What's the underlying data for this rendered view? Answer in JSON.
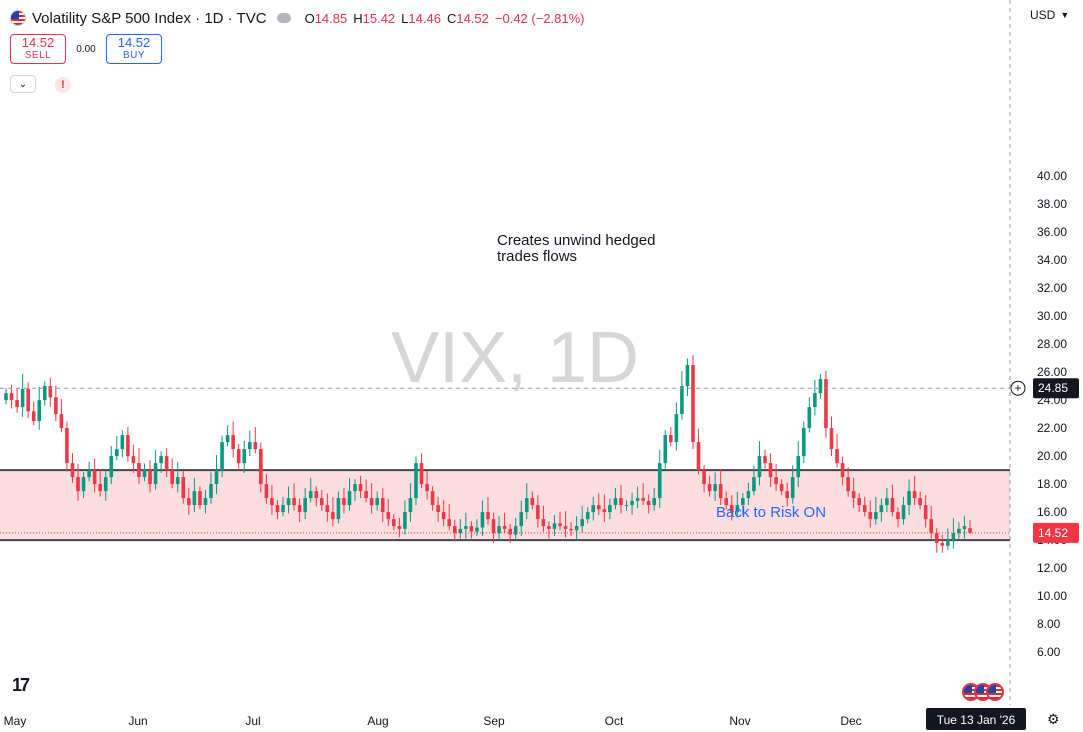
{
  "header": {
    "symbol_title": "Volatility S&P 500 Index · 1D · TVC",
    "ohlc": [
      {
        "k": "O",
        "v": "14.85"
      },
      {
        "k": "H",
        "v": "15.42"
      },
      {
        "k": "L",
        "v": "14.46"
      },
      {
        "k": "C",
        "v": "14.52"
      }
    ],
    "change": "−0.42 (−2.81%)"
  },
  "trade": {
    "sell_price": "14.52",
    "sell_label": "SELL",
    "spread": "0.00",
    "buy_price": "14.52",
    "buy_label": "BUY"
  },
  "currency": "USD",
  "watermark": "VIX, 1D",
  "annotations": {
    "top_line1": "Creates unwind hedged",
    "top_line2": "trades flows",
    "risk_on": "Back to Risk ON"
  },
  "price_labels": {
    "crosshair": "24.85",
    "last": "14.52",
    "date": "Tue 13 Jan '26"
  },
  "colors": {
    "up": "#089981",
    "down": "#f23645",
    "zone_fill": "#fcdde0",
    "zone_line": "#434651",
    "accent": "#2962ff"
  },
  "icons": {
    "gear": "gear-icon",
    "logo": "tradingview-logo"
  },
  "chart_data": {
    "type": "candlestick",
    "y_ticks": [
      "6.00",
      "8.00",
      "10.00",
      "12.00",
      "14.00",
      "16.00",
      "18.00",
      "20.00",
      "22.00",
      "24.00",
      "26.00",
      "28.00",
      "30.00",
      "32.00",
      "34.00",
      "36.00",
      "38.00",
      "40.00"
    ],
    "x_ticks": [
      "May",
      "Jun",
      "Jul",
      "Aug",
      "Sep",
      "Oct",
      "Nov",
      "Dec"
    ],
    "ylim": [
      5,
      41
    ],
    "zone": {
      "low": 14.0,
      "high": 19.0
    },
    "crosshair_y": 24.85,
    "last_price": 14.52,
    "closes": [
      24.5,
      24.0,
      23.5,
      24.8,
      23.2,
      22.5,
      24.0,
      25.0,
      24.2,
      23.0,
      22.0,
      19.5,
      18.5,
      17.5,
      18.5,
      19.0,
      18.0,
      17.5,
      18.5,
      20.0,
      20.5,
      21.5,
      20.0,
      19.5,
      18.5,
      19.0,
      18.0,
      19.5,
      20.0,
      19.0,
      18.0,
      18.5,
      17.0,
      16.5,
      17.5,
      16.5,
      17.0,
      18.0,
      19.0,
      21.0,
      21.5,
      20.5,
      19.5,
      20.5,
      21.0,
      20.5,
      18.0,
      17.0,
      16.5,
      16.0,
      16.5,
      17.0,
      16.5,
      16.0,
      17.0,
      17.5,
      17.0,
      16.5,
      16.0,
      15.5,
      17.0,
      16.5,
      17.5,
      18.0,
      17.5,
      17.0,
      16.5,
      17.0,
      16.0,
      15.5,
      15.0,
      14.8,
      16.0,
      17.0,
      19.5,
      18.0,
      17.5,
      16.5,
      16.0,
      15.5,
      15.0,
      14.5,
      14.8,
      15.0,
      14.6,
      14.9,
      16.0,
      15.5,
      14.5,
      15.0,
      14.8,
      14.4,
      15.0,
      16.0,
      17.0,
      16.5,
      15.5,
      15.0,
      14.8,
      15.2,
      15.0,
      14.8,
      14.7,
      15.0,
      15.5,
      16.0,
      16.5,
      16.2,
      16.0,
      16.5,
      17.0,
      16.5,
      16.5,
      16.8,
      17.0,
      16.8,
      16.5,
      17.0,
      19.5,
      21.5,
      21.0,
      23.0,
      25.0,
      26.5,
      21.0,
      19.0,
      18.0,
      17.5,
      18.0,
      17.0,
      16.5,
      16.0,
      16.5,
      17.0,
      17.5,
      18.5,
      20.0,
      19.5,
      18.5,
      18.0,
      17.5,
      17.0,
      18.5,
      20.0,
      22.0,
      23.5,
      24.5,
      25.5,
      22.0,
      20.5,
      19.5,
      18.5,
      17.5,
      17.0,
      16.5,
      16.0,
      15.5,
      16.0,
      16.5,
      17.0,
      16.0,
      15.5,
      16.5,
      17.5,
      17.0,
      16.5,
      15.5,
      14.5,
      13.8,
      13.6,
      14.0,
      14.5,
      14.8,
      15.0,
      14.52
    ],
    "title": "",
    "xlabel": "",
    "ylabel": "",
    "grid": false
  }
}
